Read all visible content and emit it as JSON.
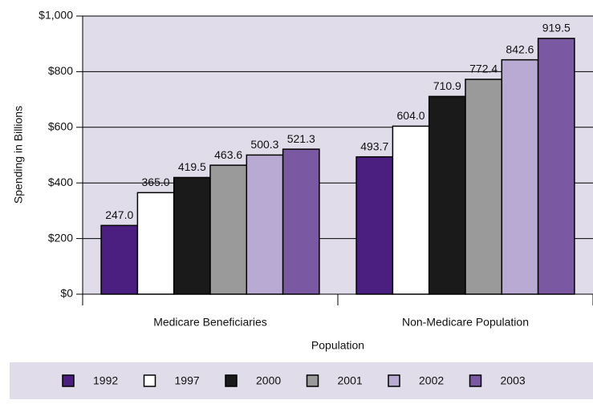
{
  "chart_data": {
    "type": "bar",
    "x_label": "Population",
    "y_label": "Spending in Billions",
    "categories": [
      "Medicare Beneficiaries",
      "Non-Medicare Population"
    ],
    "series": [
      {
        "name": "1992",
        "color": "#4b1f7f",
        "values": [
          247.0,
          493.7
        ],
        "value_labels": [
          "247.0",
          "493.7"
        ]
      },
      {
        "name": "1997",
        "color": "#ffffff",
        "values": [
          365.0,
          604.0
        ],
        "value_labels": [
          "365.0",
          "604.0"
        ]
      },
      {
        "name": "2000",
        "color": "#1a1a1a",
        "values": [
          419.5,
          710.9
        ],
        "value_labels": [
          "419.5",
          "710.9"
        ]
      },
      {
        "name": "2001",
        "color": "#9a9a9a",
        "values": [
          463.6,
          772.4
        ],
        "value_labels": [
          "463.6",
          "772.4"
        ]
      },
      {
        "name": "2002",
        "color": "#b9aad3",
        "values": [
          500.3,
          842.6
        ],
        "value_labels": [
          "500.3",
          "842.6"
        ]
      },
      {
        "name": "2003",
        "color": "#7a58a2",
        "values": [
          521.3,
          919.5
        ],
        "value_labels": [
          "521.3",
          "919.5"
        ]
      }
    ],
    "ylim": [
      0,
      1000
    ],
    "yticks": [
      {
        "value": 0,
        "label": "$0"
      },
      {
        "value": 200,
        "label": "$200"
      },
      {
        "value": 400,
        "label": "$400"
      },
      {
        "value": 600,
        "label": "$600"
      },
      {
        "value": 800,
        "label": "$800"
      },
      {
        "value": 1000,
        "label": "$1,000"
      }
    ],
    "grid": true,
    "legend": "bottom"
  }
}
